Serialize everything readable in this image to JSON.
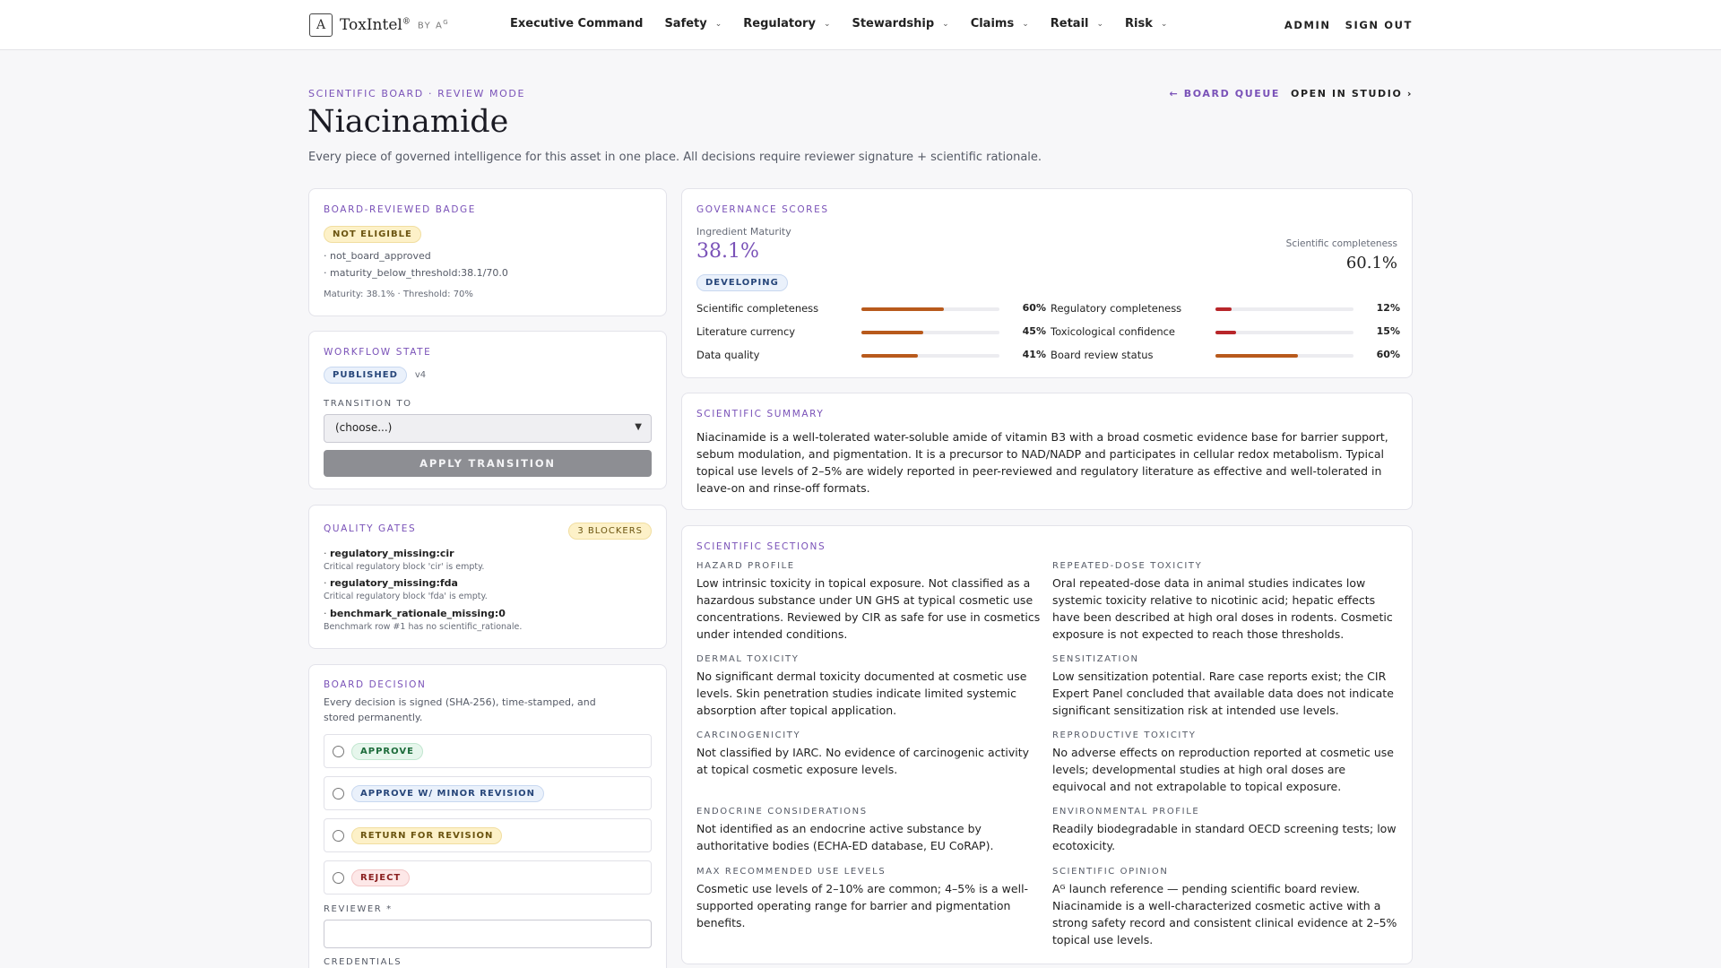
{
  "app": {
    "logo_mark": "A",
    "logo_name": "ToxIntel",
    "logo_reg": "®",
    "logo_by": "BY A",
    "logo_by_sup": "G"
  },
  "nav": {
    "items": [
      {
        "label": "Executive Command",
        "dropdown": false
      },
      {
        "label": "Safety",
        "dropdown": true
      },
      {
        "label": "Regulatory",
        "dropdown": true
      },
      {
        "label": "Stewardship",
        "dropdown": true
      },
      {
        "label": "Claims",
        "dropdown": true
      },
      {
        "label": "Retail",
        "dropdown": true
      },
      {
        "label": "Risk",
        "dropdown": true
      }
    ],
    "admin": "ADMIN",
    "signout": "SIGN OUT"
  },
  "header": {
    "eyebrow": "SCIENTIFIC BOARD · REVIEW MODE",
    "board_queue": "← BOARD QUEUE",
    "open_studio": "OPEN IN STUDIO ›",
    "title": "Niacinamide",
    "subtitle": "Every piece of governed intelligence for this asset in one place. All decisions require reviewer signature + scientific rationale."
  },
  "badge_card": {
    "label": "BOARD-REVIEWED BADGE",
    "status": "NOT ELIGIBLE",
    "reasons": [
      "· not_board_approved",
      "· maturity_below_threshold:38.1/70.0"
    ],
    "footer": "Maturity: 38.1% · Threshold: 70%"
  },
  "workflow": {
    "label": "WORKFLOW STATE",
    "state": "PUBLISHED",
    "version": "v4",
    "transition_label": "TRANSITION TO",
    "transition_value": "(choose...)",
    "apply_label": "APPLY TRANSITION"
  },
  "gates": {
    "label": "QUALITY GATES",
    "blockers": "3 BLOCKERS",
    "items": [
      {
        "code": "regulatory_missing:cir",
        "desc": "Critical regulatory block 'cir' is empty."
      },
      {
        "code": "regulatory_missing:fda",
        "desc": "Critical regulatory block 'fda' is empty."
      },
      {
        "code": "benchmark_rationale_missing:0",
        "desc": "Benchmark row #1 has no scientific_rationale."
      }
    ]
  },
  "decision": {
    "label": "BOARD DECISION",
    "desc": "Every decision is signed (SHA-256), time-stamped, and stored permanently.",
    "options": [
      "APPROVE",
      "APPROVE W/ MINOR REVISION",
      "RETURN FOR REVISION",
      "REJECT"
    ],
    "reviewer_label": "REVIEWER *",
    "reviewer_value": "",
    "credentials_label": "CREDENTIALS"
  },
  "governance": {
    "label": "GOVERNANCE SCORES",
    "maturity_label": "Ingredient Maturity",
    "maturity_value": "38.1%",
    "maturity_status": "DEVELOPING",
    "completeness_label": "Scientific completeness",
    "completeness_value": "60.1%",
    "metrics_left": [
      {
        "name": "Scientific completeness",
        "value": 60,
        "display": "60%",
        "color": "#b85a1c"
      },
      {
        "name": "Literature currency",
        "value": 45,
        "display": "45%",
        "color": "#b85a1c"
      },
      {
        "name": "Data quality",
        "value": 41,
        "display": "41%",
        "color": "#b85a1c"
      }
    ],
    "metrics_right": [
      {
        "name": "Regulatory completeness",
        "value": 12,
        "display": "12%",
        "color": "#b8262a"
      },
      {
        "name": "Toxicological confidence",
        "value": 15,
        "display": "15%",
        "color": "#b8262a"
      },
      {
        "name": "Board review status",
        "value": 60,
        "display": "60%",
        "color": "#b85a1c"
      }
    ]
  },
  "summary": {
    "label": "SCIENTIFIC SUMMARY",
    "text": "Niacinamide is a well-tolerated water-soluble amide of vitamin B3 with a broad cosmetic evidence base for barrier support, sebum modulation, and pigmentation. It is a precursor to NAD/NADP and participates in cellular redox metabolism. Typical topical use levels of 2–5% are widely reported in peer-reviewed and regulatory literature as effective and well-tolerated in leave-on and rinse-off formats."
  },
  "sections": {
    "label": "SCIENTIFIC SECTIONS",
    "items": [
      {
        "title": "HAZARD PROFILE",
        "text": "Low intrinsic toxicity in topical exposure. Not classified as a hazardous substance under UN GHS at typical cosmetic use concentrations. Reviewed by CIR as safe for use in cosmetics under intended conditions."
      },
      {
        "title": "REPEATED-DOSE TOXICITY",
        "text": "Oral repeated-dose data in animal studies indicates low systemic toxicity relative to nicotinic acid; hepatic effects have been described at high oral doses in rodents. Cosmetic exposure is not expected to reach those thresholds."
      },
      {
        "title": "DERMAL TOXICITY",
        "text": "No significant dermal toxicity documented at cosmetic use levels. Skin penetration studies indicate limited systemic absorption after topical application."
      },
      {
        "title": "SENSITIZATION",
        "text": "Low sensitization potential. Rare case reports exist; the CIR Expert Panel concluded that available data does not indicate significant sensitization risk at intended use levels."
      },
      {
        "title": "CARCINOGENICITY",
        "text": "Not classified by IARC. No evidence of carcinogenic activity at topical cosmetic exposure levels."
      },
      {
        "title": "REPRODUCTIVE TOXICITY",
        "text": "No adverse effects on reproduction reported at cosmetic use levels; developmental studies at high oral doses are equivocal and not extrapolable to topical exposure."
      },
      {
        "title": "ENDOCRINE CONSIDERATIONS",
        "text": "Not identified as an endocrine active substance by authoritative bodies (ECHA-ED database, EU CoRAP)."
      },
      {
        "title": "ENVIRONMENTAL PROFILE",
        "text": "Readily biodegradable in standard OECD screening tests; low ecotoxicity."
      },
      {
        "title": "MAX RECOMMENDED USE LEVELS",
        "text": "Cosmetic use levels of 2–10% are common; 4–5% is a well-supported operating range for barrier and pigmentation benefits."
      },
      {
        "title": "SCIENTIFIC OPINION",
        "text": "Aᴳ launch reference — pending scientific board review. Niacinamide is a well-characterized cosmetic active with a strong safety record and consistent clinical evidence at 2–5% topical use levels."
      }
    ]
  }
}
